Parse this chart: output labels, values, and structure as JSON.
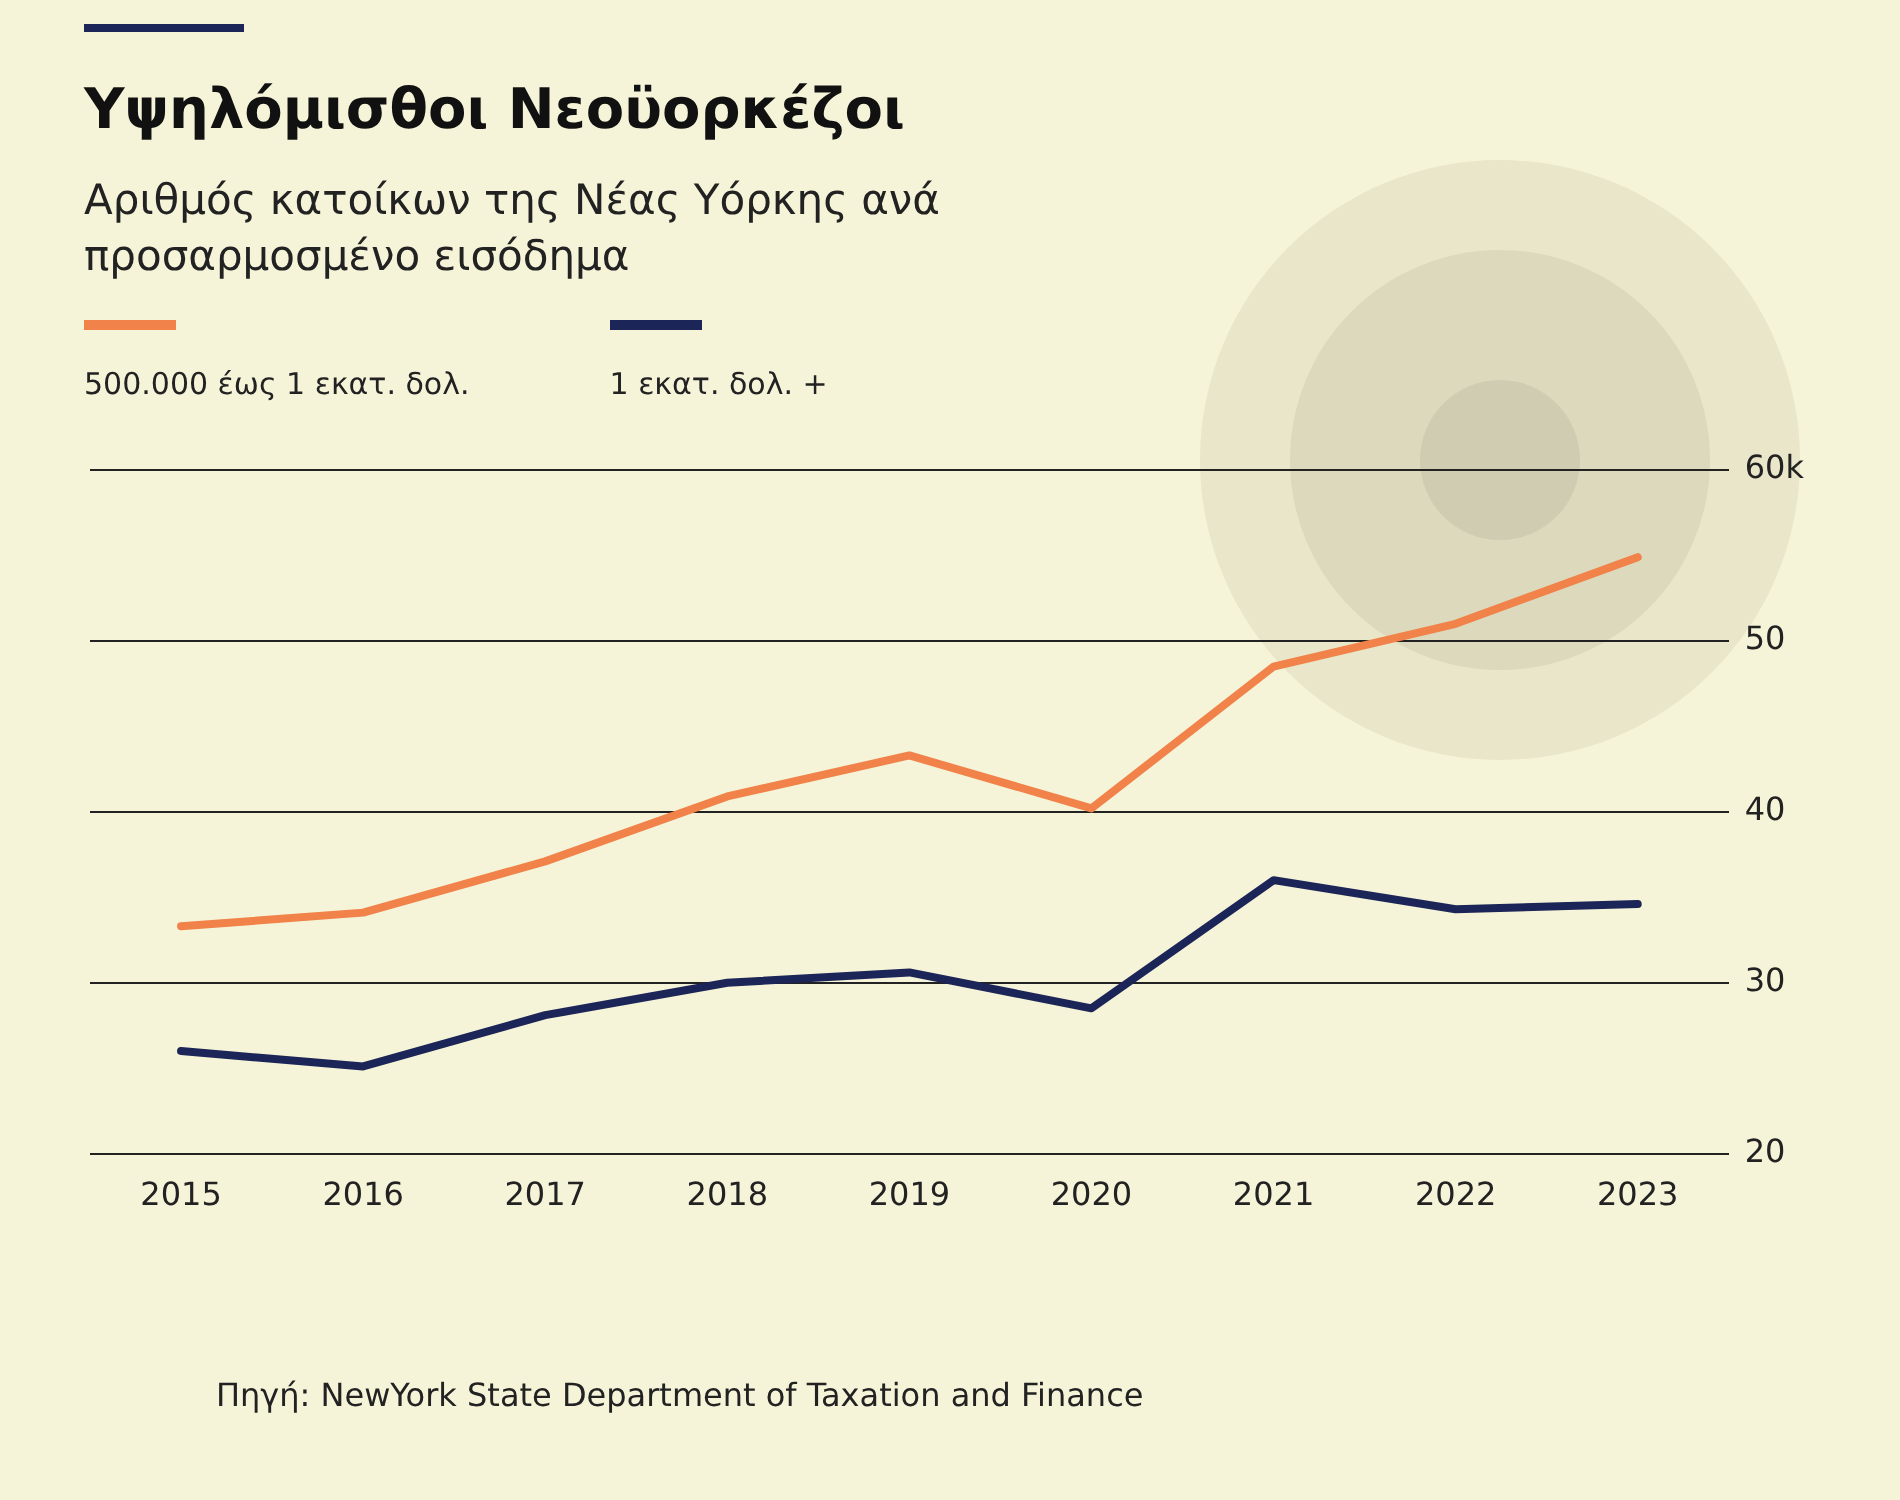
{
  "chart_data": {
    "type": "line",
    "title": "Υψηλόμισθοι Νεοϋορκέζοι",
    "subtitle": "Αριθμός κατοίκων της Νέας Υόρκης ανά προσαρμοσμένο εισόδημα",
    "categories": [
      "2015",
      "2016",
      "2017",
      "2018",
      "2019",
      "2020",
      "2021",
      "2022",
      "2023"
    ],
    "series": [
      {
        "name": "500.000 έως 1 εκατ. δολ.",
        "color": "#f0824a",
        "values": [
          33.3,
          34.1,
          37.1,
          40.9,
          43.3,
          40.2,
          48.5,
          51.0,
          54.9
        ]
      },
      {
        "name": "1 εκατ. δολ. +",
        "color": "#1c2557",
        "values": [
          26.0,
          25.1,
          28.1,
          30.0,
          30.6,
          28.5,
          36.0,
          34.3,
          34.6
        ]
      }
    ],
    "ylim": [
      20,
      60
    ],
    "yticks": [
      20,
      30,
      40,
      50,
      {
        "value": 60,
        "label": "60k"
      }
    ],
    "grid": "y",
    "legend": "top left",
    "marker": "none",
    "line_style": "solid",
    "annotations": [
      "Πηγή: NewYork State Department of Taxation and Finance"
    ]
  }
}
